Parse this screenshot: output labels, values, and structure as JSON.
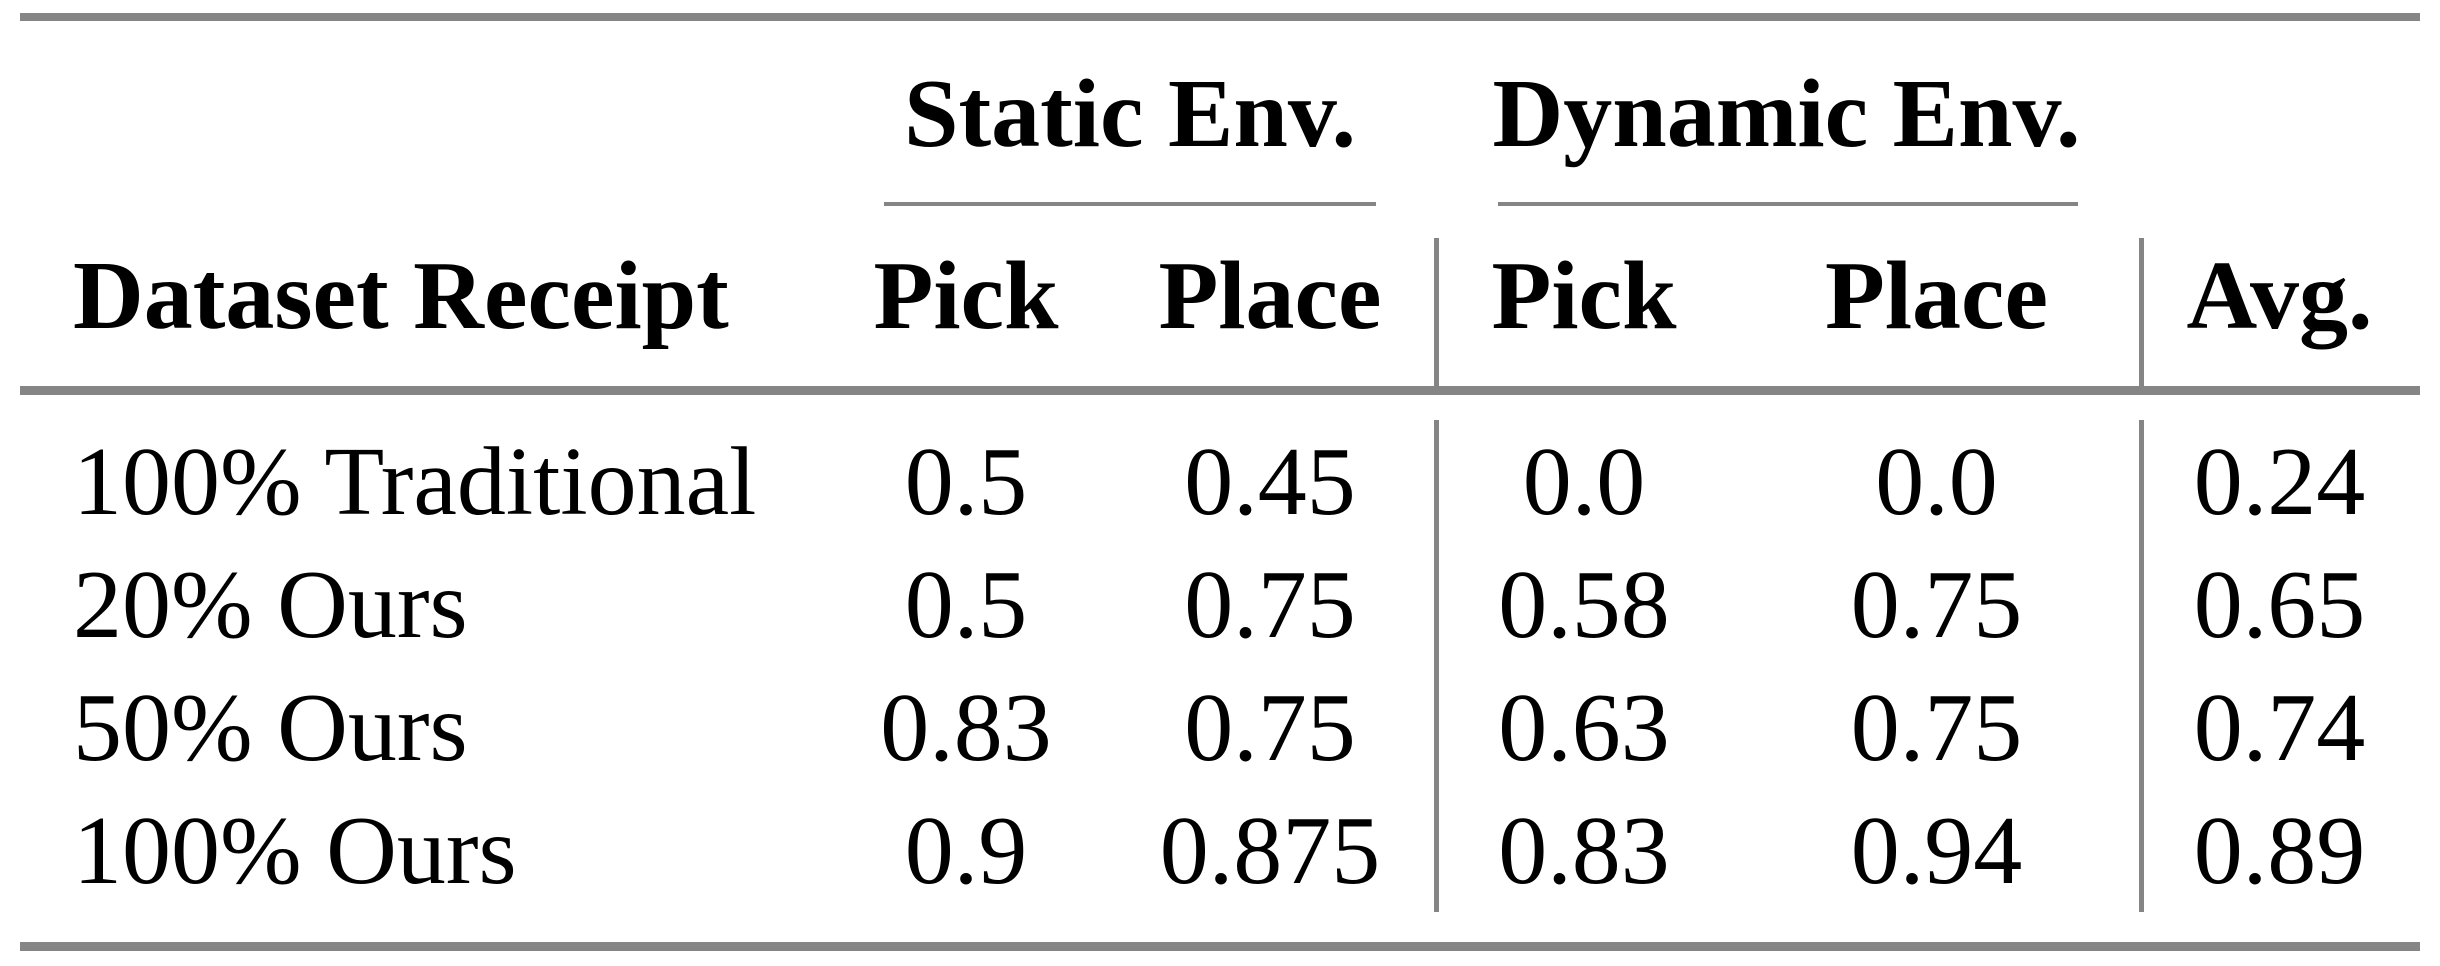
{
  "figure": {
    "kind": "paper-results-table"
  },
  "colors": {
    "background": "#ffffff",
    "text": "#000000",
    "rule": "#858585"
  },
  "table": {
    "groups": [
      {
        "label": "Static Env."
      },
      {
        "label": "Dynamic Env."
      }
    ],
    "headers": {
      "dataset": "Dataset Receipt",
      "static_pick": "Pick",
      "static_place": "Place",
      "dynamic_pick": "Pick",
      "dynamic_place": "Place",
      "avg": "Avg."
    },
    "rows": [
      [
        "100% Traditional",
        "0.5",
        "0.45",
        "0.0",
        "0.0",
        "0.24"
      ],
      [
        "20% Ours",
        "0.5",
        "0.75",
        "0.58",
        "0.75",
        "0.65"
      ],
      [
        "50% Ours",
        "0.83",
        "0.75",
        "0.63",
        "0.75",
        "0.74"
      ],
      [
        "100% Ours",
        "0.9",
        "0.875",
        "0.83",
        "0.94",
        "0.89"
      ]
    ]
  },
  "chart_data": {
    "type": "table",
    "title": "",
    "columns": [
      "Dataset Receipt",
      "Pick (Static Env.)",
      "Place (Static Env.)",
      "Pick (Dynamic Env.)",
      "Place (Dynamic Env.)",
      "Avg."
    ],
    "rows": [
      {
        "dataset_receipt": "100% Traditional",
        "static_pick": 0.5,
        "static_place": 0.45,
        "dynamic_pick": 0.0,
        "dynamic_place": 0.0,
        "avg": 0.24
      },
      {
        "dataset_receipt": "20% Ours",
        "static_pick": 0.5,
        "static_place": 0.75,
        "dynamic_pick": 0.58,
        "dynamic_place": 0.75,
        "avg": 0.65
      },
      {
        "dataset_receipt": "50% Ours",
        "static_pick": 0.83,
        "static_place": 0.75,
        "dynamic_pick": 0.63,
        "dynamic_place": 0.75,
        "avg": 0.74
      },
      {
        "dataset_receipt": "100% Ours",
        "static_pick": 0.9,
        "static_place": 0.875,
        "dynamic_pick": 0.83,
        "dynamic_place": 0.94,
        "avg": 0.89
      }
    ]
  }
}
